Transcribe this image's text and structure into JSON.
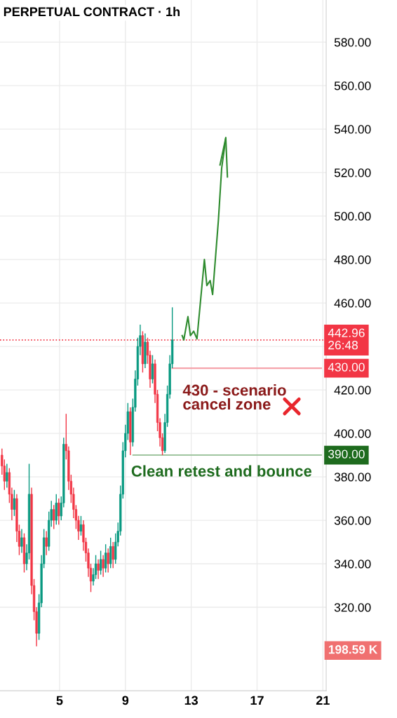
{
  "chart_data": {
    "type": "candlestick",
    "title": "PERPETUAL CONTRACT · 1h",
    "x": [
      1.5,
      1.65,
      1.8,
      1.95,
      2.1,
      2.25,
      2.4,
      2.55,
      2.7,
      2.85,
      3.0,
      3.15,
      3.3,
      3.45,
      3.6,
      3.75,
      3.9,
      4.05,
      4.2,
      4.35,
      4.5,
      4.65,
      4.8,
      4.95,
      5.1,
      5.25,
      5.4,
      5.55,
      5.7,
      5.85,
      6.0,
      6.15,
      6.3,
      6.45,
      6.6,
      6.75,
      6.9,
      7.05,
      7.2,
      7.35,
      7.5,
      7.65,
      7.8,
      7.95,
      8.1,
      8.25,
      8.4,
      8.55,
      8.7,
      8.85,
      9.0,
      9.15,
      9.3,
      9.45,
      9.6,
      9.75,
      9.9,
      10.05,
      10.2,
      10.35,
      10.5,
      10.65,
      10.8,
      10.95,
      11.1,
      11.25,
      11.4,
      11.55,
      11.7,
      11.85
    ],
    "ohlc": [
      [
        390,
        393,
        381,
        385
      ],
      [
        385,
        388,
        374,
        378
      ],
      [
        378,
        386,
        375,
        382
      ],
      [
        382,
        384,
        368,
        372
      ],
      [
        372,
        375,
        360,
        365
      ],
      [
        365,
        374,
        362,
        370
      ],
      [
        370,
        372,
        350,
        355
      ],
      [
        355,
        358,
        344,
        348
      ],
      [
        348,
        356,
        345,
        352
      ],
      [
        352,
        354,
        336,
        340
      ],
      [
        340,
        349,
        337,
        345
      ],
      [
        345,
        386,
        342,
        372
      ],
      [
        372,
        375,
        326,
        330
      ],
      [
        330,
        333,
        314,
        318
      ],
      [
        318,
        320,
        302,
        308
      ],
      [
        308,
        326,
        305,
        322
      ],
      [
        322,
        344,
        320,
        340
      ],
      [
        340,
        356,
        338,
        352
      ],
      [
        352,
        355,
        344,
        348
      ],
      [
        348,
        364,
        346,
        360
      ],
      [
        360,
        369,
        357,
        365
      ],
      [
        365,
        367,
        356,
        360
      ],
      [
        360,
        372,
        358,
        368
      ],
      [
        368,
        370,
        358,
        362
      ],
      [
        362,
        371,
        360,
        368
      ],
      [
        368,
        398,
        366,
        395
      ],
      [
        395,
        409,
        388,
        392
      ],
      [
        392,
        394,
        374,
        378
      ],
      [
        378,
        381,
        368,
        372
      ],
      [
        372,
        375,
        361,
        365
      ],
      [
        365,
        367,
        356,
        360
      ],
      [
        360,
        362,
        351,
        355
      ],
      [
        355,
        362,
        353,
        358
      ],
      [
        358,
        360,
        346,
        350
      ],
      [
        350,
        352,
        341,
        345
      ],
      [
        345,
        347,
        334,
        338
      ],
      [
        338,
        340,
        327,
        332
      ],
      [
        332,
        338,
        330,
        335
      ],
      [
        335,
        344,
        333,
        340
      ],
      [
        340,
        342,
        333,
        337
      ],
      [
        337,
        346,
        335,
        342
      ],
      [
        342,
        344,
        334,
        338
      ],
      [
        338,
        349,
        336,
        345
      ],
      [
        345,
        347,
        336,
        340
      ],
      [
        340,
        352,
        338,
        348
      ],
      [
        348,
        350,
        338,
        342
      ],
      [
        342,
        354,
        340,
        350
      ],
      [
        350,
        359,
        348,
        355
      ],
      [
        355,
        376,
        353,
        372
      ],
      [
        372,
        396,
        370,
        392
      ],
      [
        392,
        404,
        389,
        400
      ],
      [
        400,
        414,
        397,
        410
      ],
      [
        410,
        412,
        390,
        396
      ],
      [
        396,
        416,
        394,
        412
      ],
      [
        412,
        429,
        410,
        425
      ],
      [
        425,
        444,
        422,
        440
      ],
      [
        440,
        450,
        436,
        445
      ],
      [
        445,
        447,
        428,
        432
      ],
      [
        432,
        446,
        430,
        442
      ],
      [
        442,
        444,
        432,
        436
      ],
      [
        436,
        438,
        421,
        425
      ],
      [
        425,
        436,
        423,
        432
      ],
      [
        432,
        434,
        414,
        418
      ],
      [
        418,
        420,
        401,
        405
      ],
      [
        405,
        407,
        394,
        398
      ],
      [
        398,
        400,
        390,
        392
      ],
      [
        392,
        409,
        391,
        405
      ],
      [
        405,
        422,
        403,
        418
      ],
      [
        418,
        436,
        416,
        432
      ],
      [
        432,
        458,
        430,
        442.96
      ]
    ],
    "colors": [
      "#f23645",
      "#f23645",
      "#089981",
      "#f23645",
      "#f23645",
      "#089981",
      "#f23645",
      "#f23645",
      "#089981",
      "#f23645",
      "#089981",
      "#089981",
      "#f23645",
      "#f23645",
      "#f23645",
      "#089981",
      "#089981",
      "#089981",
      "#f23645",
      "#089981",
      "#089981",
      "#f23645",
      "#089981",
      "#f23645",
      "#089981",
      "#089981",
      "#f23645",
      "#f23645",
      "#f23645",
      "#f23645",
      "#f23645",
      "#f23645",
      "#089981",
      "#f23645",
      "#f23645",
      "#f23645",
      "#f23645",
      "#089981",
      "#089981",
      "#f23645",
      "#089981",
      "#f23645",
      "#089981",
      "#f23645",
      "#089981",
      "#f23645",
      "#089981",
      "#089981",
      "#089981",
      "#089981",
      "#089981",
      "#089981",
      "#f23645",
      "#089981",
      "#089981",
      "#089981",
      "#089981",
      "#f23645",
      "#089981",
      "#f23645",
      "#f23645",
      "#089981",
      "#f23645",
      "#f23645",
      "#f23645",
      "#f23645",
      "#089981",
      "#089981",
      "#089981",
      "#089981"
    ],
    "series": [
      {
        "type": "line",
        "color": "#2e8b2e",
        "x": [
          12.45,
          12.55,
          12.8,
          12.95,
          13.15,
          13.35,
          13.8,
          13.95,
          14.15,
          14.3,
          14.65,
          14.85,
          15.1
        ],
        "values": [
          445,
          443,
          453.7,
          445,
          447,
          443.5,
          480,
          468,
          470.3,
          463.9,
          498,
          522,
          536
        ]
      },
      {
        "type": "line",
        "color": "#2e8b2e",
        "x": [
          14.75,
          15.1,
          15.2
        ],
        "values": [
          523.5,
          536,
          518
        ]
      },
      {
        "type": "line",
        "color": "#f5a3ab",
        "x": [
          11.85,
          20.9
        ],
        "values": [
          430,
          430
        ]
      },
      {
        "type": "line",
        "color": "#9fc59f",
        "x": [
          9.47,
          20.9
        ],
        "values": [
          390,
          390
        ]
      }
    ],
    "ref_lines": [
      {
        "axis": "y",
        "value": 442.96,
        "label": "442.96\n26:48",
        "color": "#f23645",
        "line_style": "dotted"
      }
    ],
    "annotations": [
      "430 - scenario\ncancel zone",
      "Clean retest and bounce",
      "430.00",
      "390.00",
      "198.59 K"
    ],
    "xlim": [
      1.38,
      21.2
    ],
    "xticks": [
      5,
      9,
      13,
      17,
      21
    ],
    "ylim": [
      281.6,
      599.4
    ],
    "yticks": [
      {
        "value": 320,
        "label": "320.00"
      },
      {
        "value": 340,
        "label": "340.00"
      },
      {
        "value": 360,
        "label": "360.00"
      },
      {
        "value": 380,
        "label": "380.00"
      },
      {
        "value": 400,
        "label": "400.00"
      },
      {
        "value": 420,
        "label": "420.00"
      },
      {
        "value": 440,
        "label": null
      },
      {
        "value": 460,
        "label": "460.00"
      },
      {
        "value": 480,
        "label": "480.00"
      },
      {
        "value": 500,
        "label": "500.00"
      },
      {
        "value": 520,
        "label": "520.00"
      },
      {
        "value": 540,
        "label": "540.00"
      },
      {
        "value": 560,
        "label": "560.00"
      },
      {
        "value": 580,
        "label": "580.00"
      }
    ],
    "grid": true,
    "legend": false
  }
}
